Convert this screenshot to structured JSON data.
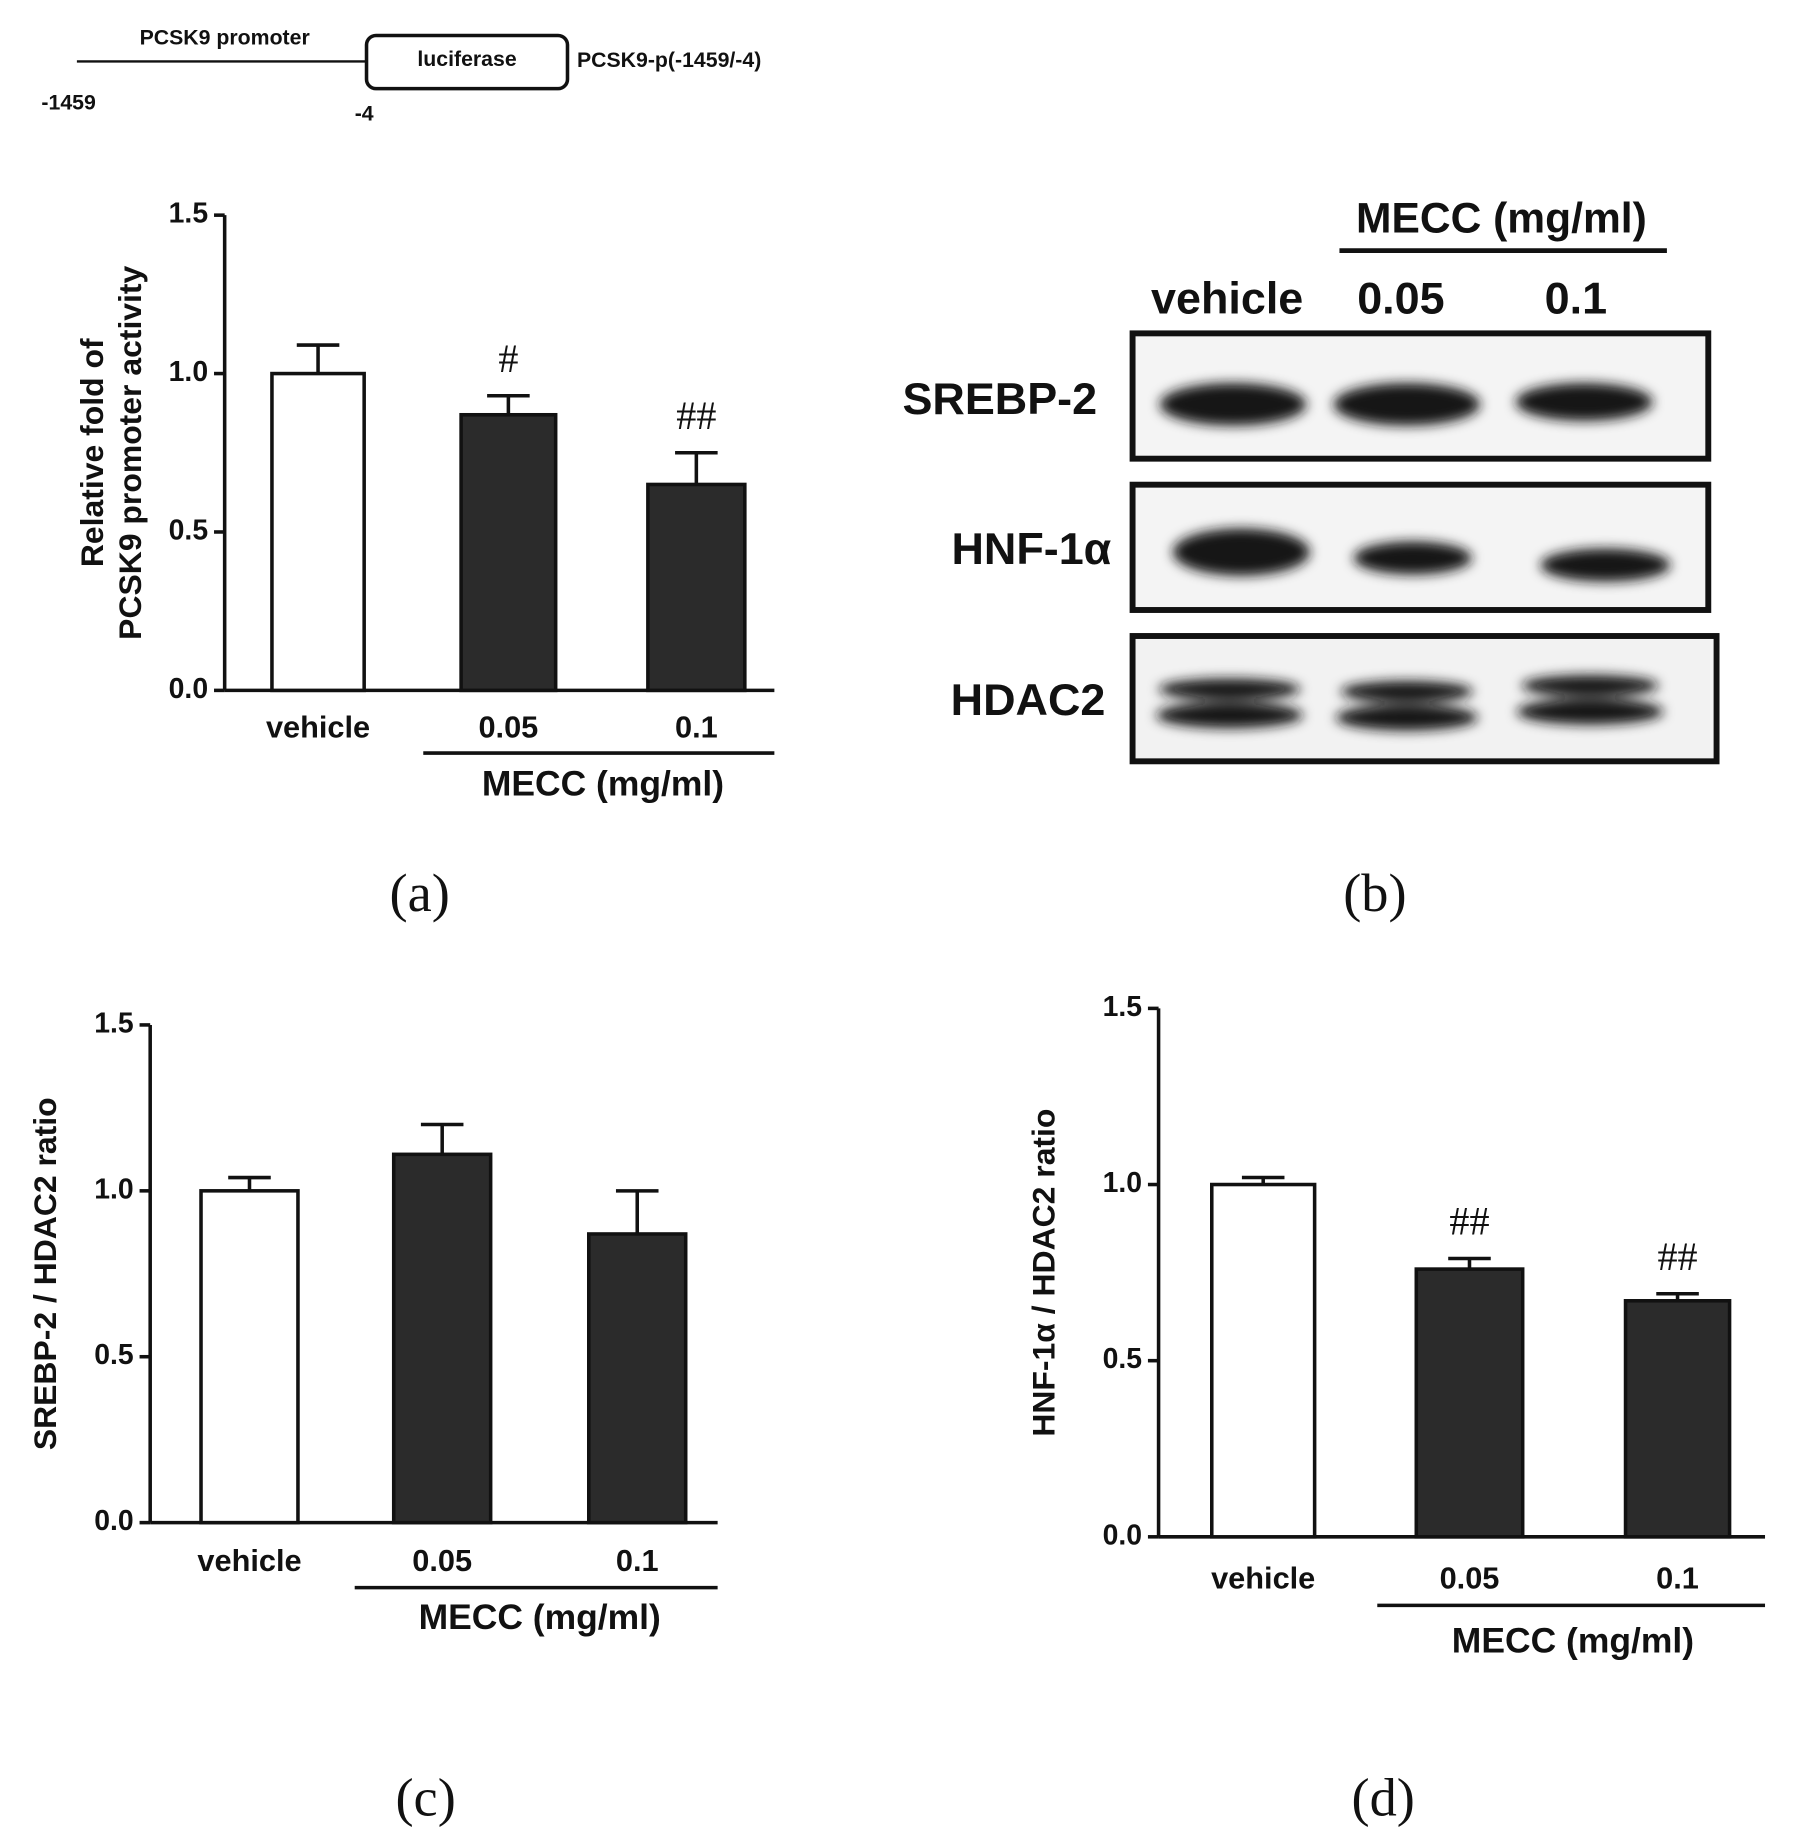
{
  "chart_data": [
    {
      "type": "bar",
      "panel_label": "(a)",
      "ylabel": [
        "Relative fold of",
        "PCSK9 promoter activity"
      ],
      "categories": [
        "vehicle",
        "0.05",
        "0.1"
      ],
      "values": [
        1.0,
        0.87,
        0.65
      ],
      "errors": [
        0.09,
        0.06,
        0.1
      ],
      "colors": [
        "#ffffff",
        "#2b2b2b",
        "#2b2b2b"
      ],
      "annotations": [
        null,
        "#",
        "##"
      ],
      "group_label": "MECC (mg/ml)",
      "ylim": [
        0,
        1.5
      ],
      "yticks": [
        {
          "value": 0,
          "label": "0.0"
        },
        {
          "value": 0.5,
          "label": "0.5"
        },
        {
          "value": 1,
          "label": "1.0"
        },
        {
          "value": 1.5,
          "label": "1.5"
        }
      ]
    },
    {
      "type": "bar",
      "panel_label": "(c)",
      "ylabel": [
        "SREBP-2 / HDAC2 ratio"
      ],
      "categories": [
        "vehicle",
        "0.05",
        "0.1"
      ],
      "values": [
        1.0,
        1.11,
        0.87
      ],
      "errors": [
        0.04,
        0.09,
        0.13
      ],
      "colors": [
        "#ffffff",
        "#2b2b2b",
        "#2b2b2b"
      ],
      "annotations": [
        null,
        null,
        null
      ],
      "group_label": "MECC (mg/ml)",
      "ylim": [
        0,
        1.5
      ],
      "yticks": [
        {
          "value": 0,
          "label": "0.0"
        },
        {
          "value": 0.5,
          "label": "0.5"
        },
        {
          "value": 1,
          "label": "1.0"
        },
        {
          "value": 1.5,
          "label": "1.5"
        }
      ]
    },
    {
      "type": "bar",
      "panel_label": "(d)",
      "ylabel": [
        "HNF-1α / HDAC2 ratio"
      ],
      "categories": [
        "vehicle",
        "0.05",
        "0.1"
      ],
      "values": [
        1.0,
        0.76,
        0.67
      ],
      "errors": [
        0.02,
        0.03,
        0.02
      ],
      "colors": [
        "#ffffff",
        "#2b2b2b",
        "#2b2b2b"
      ],
      "annotations": [
        null,
        "##",
        "##"
      ],
      "group_label": "MECC (mg/ml)",
      "ylim": [
        0,
        1.5
      ],
      "yticks": [
        {
          "value": 0,
          "label": "0.0"
        },
        {
          "value": 0.5,
          "label": "0.5"
        },
        {
          "value": 1,
          "label": "1.0"
        },
        {
          "value": 1.5,
          "label": "1.5"
        }
      ]
    }
  ],
  "diagram": {
    "promoter": "PCSK9 promoter",
    "reporter": "luciferase",
    "construct": "PCSK9-p(-1459/-4)",
    "start": "-1459",
    "end": "-4"
  },
  "blot": {
    "panel_label": "(b)",
    "group_label": "MECC (mg/ml)",
    "lanes": [
      "vehicle",
      "0.05",
      "0.1"
    ],
    "rows": [
      "SREBP-2",
      "HNF-1α",
      "HDAC2"
    ]
  }
}
